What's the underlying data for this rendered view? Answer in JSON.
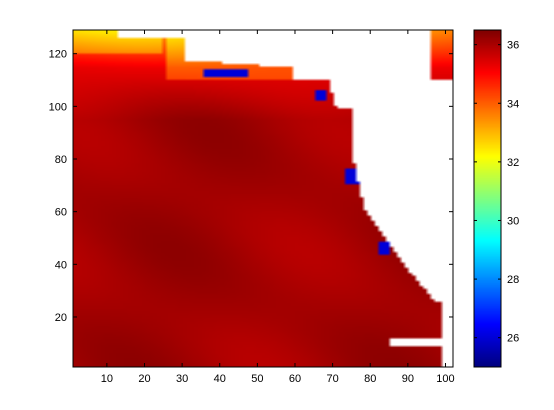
{
  "chart_data": {
    "type": "heatmap",
    "title": "",
    "xlabel": "",
    "ylabel": "",
    "xlim": [
      1,
      102
    ],
    "ylim": [
      1,
      129
    ],
    "x_ticks": [
      10,
      20,
      30,
      40,
      50,
      60,
      70,
      80,
      90,
      100
    ],
    "y_ticks": [
      20,
      40,
      60,
      80,
      100,
      120
    ],
    "colorbar": {
      "colormap": "jet",
      "clim": [
        25,
        36.5
      ],
      "ticks": [
        26,
        28,
        30,
        32,
        34,
        36
      ]
    },
    "field": {
      "description_values": "sea surface salinity-like field, mostly 35.5-36.5 in interior, about 34-35 near the northern coast, lower values near river outflows",
      "interior_value": 36.0,
      "north_strip_value": 34.5,
      "coastal_freshwater_value": 32.5,
      "river_outflow_value": 26.0,
      "land_value": null,
      "colors": {
        "land": "#ffffff"
      }
    }
  }
}
